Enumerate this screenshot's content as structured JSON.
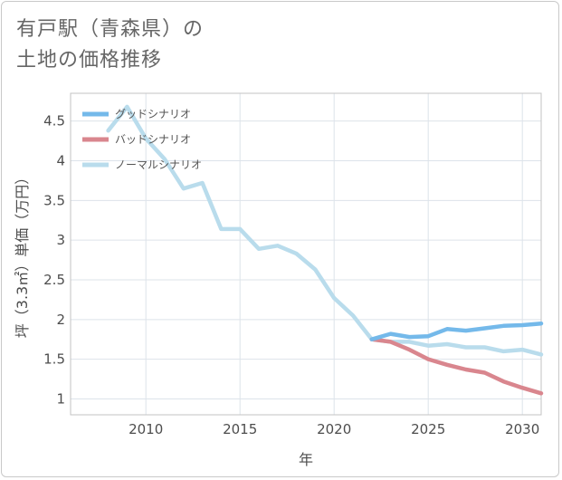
{
  "header": {
    "title_line1": "有戸駅（青森県）の",
    "title_line2": "土地の価格推移"
  },
  "chart_data": {
    "type": "line",
    "xlabel": "年",
    "ylabel": "坪（3.3㎡）単価（万円）",
    "xlim": [
      2006,
      2031
    ],
    "ylim": [
      0.8,
      4.85
    ],
    "x_ticks": [
      2010,
      2015,
      2020,
      2025,
      2030
    ],
    "y_ticks": [
      1,
      1.5,
      2,
      2.5,
      3,
      3.5,
      4,
      4.5
    ],
    "y_tick_labels": [
      "1",
      "1.5",
      "2",
      "2.5",
      "3",
      "3.5",
      "4",
      "4.5"
    ],
    "x_tick_labels": [
      "2010",
      "2015",
      "2020",
      "2025",
      "2030"
    ],
    "grid": true,
    "legend_position": "top-left",
    "series": [
      {
        "name": "グッドシナリオ",
        "color": "#74b9ea",
        "x": [
          2022,
          2023,
          2024,
          2025,
          2026,
          2027,
          2028,
          2029,
          2030,
          2031
        ],
        "y": [
          1.75,
          1.82,
          1.78,
          1.79,
          1.88,
          1.86,
          1.89,
          1.92,
          1.93,
          1.95
        ]
      },
      {
        "name": "バッドシナリオ",
        "color": "#d9868e",
        "x": [
          2022,
          2023,
          2024,
          2025,
          2026,
          2027,
          2028,
          2029,
          2030,
          2031
        ],
        "y": [
          1.75,
          1.72,
          1.62,
          1.5,
          1.43,
          1.37,
          1.33,
          1.22,
          1.14,
          1.07
        ]
      },
      {
        "name": "ノーマルシナリオ",
        "color": "#b9dcec",
        "x": [
          2008,
          2009,
          2010,
          2011,
          2012,
          2013,
          2014,
          2015,
          2016,
          2017,
          2018,
          2019,
          2020,
          2021,
          2022,
          2023,
          2024,
          2025,
          2026,
          2027,
          2028,
          2029,
          2030,
          2031
        ],
        "y": [
          4.38,
          4.68,
          4.28,
          4.02,
          3.65,
          3.72,
          3.14,
          3.14,
          2.89,
          2.93,
          2.83,
          2.63,
          2.27,
          2.05,
          1.75,
          1.72,
          1.72,
          1.67,
          1.69,
          1.65,
          1.65,
          1.6,
          1.62,
          1.56
        ]
      }
    ]
  }
}
